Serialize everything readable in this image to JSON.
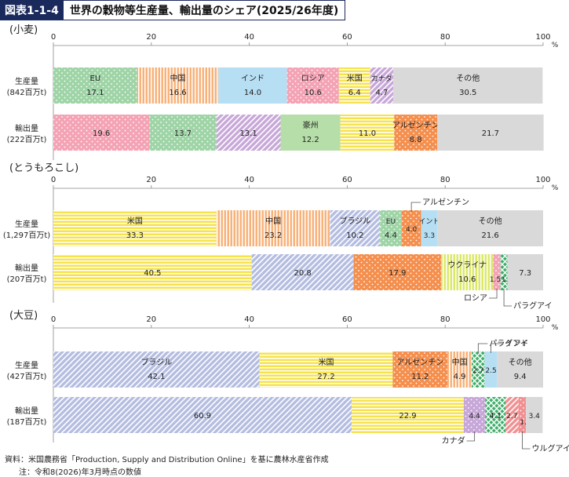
{
  "figure": {
    "label": "図表1-1-4",
    "title": "世界の穀物等生産量、輸出量のシェア(2025/26年度)",
    "source": "資料：米国農務省「Production, Supply and Distribution Online」を基に農林水産省作成",
    "note": "注：令和8(2026)年3月時点の数値"
  },
  "colors": {
    "EU": "#9ed4a6",
    "中国": "#f7b27a",
    "インド": "#b7dff3",
    "ロシア": "#f4a3b5",
    "米国": "#f6e24d",
    "カナダ": "#c7a7d8",
    "その他": "#d9d9d9",
    "豪州": "#b6dea8",
    "アルゼンチン": "#f48f4e",
    "ブラジル": "#b4bde0",
    "ウクライナ": "#dbe86a",
    "パラグアイ": "#3fae6a",
    "ウルグアイ": "#f18f91"
  },
  "chart_data": [
    {
      "type": "bar",
      "stacked": "horizontal",
      "title": "(小麦)",
      "xlim": [
        0,
        100
      ],
      "x_ticks": [
        "0",
        "20",
        "40",
        "60",
        "80",
        "100"
      ],
      "x_unit": "%",
      "bars": [
        {
          "label": "生産量",
          "sublabel": "(842百万t)",
          "segments": [
            {
              "name": "EU",
              "value": 17.1,
              "pattern": "dots",
              "label_pos": "inside"
            },
            {
              "name": "中国",
              "value": 16.6,
              "pattern": "vlines",
              "label_pos": "inside"
            },
            {
              "name": "インド",
              "value": 14.0,
              "pattern": "none",
              "label_pos": "inside"
            },
            {
              "name": "ロシア",
              "value": 10.6,
              "pattern": "dots",
              "label_pos": "inside"
            },
            {
              "name": "米国",
              "value": 6.4,
              "pattern": "hlines",
              "label_pos": "inside"
            },
            {
              "name": "カナダ",
              "value": 4.7,
              "pattern": "diag",
              "label_pos": "inside"
            },
            {
              "name": "その他",
              "value": 30.5,
              "pattern": "none",
              "label_pos": "inside"
            }
          ]
        },
        {
          "label": "輸出量",
          "sublabel": "(222百万t)",
          "segments": [
            {
              "name": "ロシア",
              "value": 19.6,
              "pattern": "dots",
              "label_pos": "value"
            },
            {
              "name": "EU",
              "value": 13.7,
              "pattern": "dots",
              "label_pos": "value"
            },
            {
              "name": "カナダ",
              "value": 13.1,
              "pattern": "diag",
              "label_pos": "value"
            },
            {
              "name": "豪州",
              "value": 12.2,
              "pattern": "none",
              "label_pos": "inside"
            },
            {
              "name": "米国",
              "value": 11.0,
              "pattern": "hlines",
              "label_pos": "value"
            },
            {
              "name": "アルゼンチン",
              "value": 8.8,
              "pattern": "dots",
              "label_pos": "inside"
            },
            {
              "name": "その他",
              "value": 21.7,
              "pattern": "none",
              "label_pos": "value"
            }
          ]
        }
      ]
    },
    {
      "type": "bar",
      "stacked": "horizontal",
      "title": "(とうもろこし)",
      "xlim": [
        0,
        100
      ],
      "x_ticks": [
        "0",
        "20",
        "40",
        "60",
        "80",
        "100"
      ],
      "x_unit": "%",
      "bars": [
        {
          "label": "生産量",
          "sublabel": "(1,297百万t)",
          "segments": [
            {
              "name": "米国",
              "value": 33.3,
              "pattern": "hlines",
              "label_pos": "inside"
            },
            {
              "name": "中国",
              "value": 23.2,
              "pattern": "vlines",
              "label_pos": "inside"
            },
            {
              "name": "ブラジル",
              "value": 10.2,
              "pattern": "diag",
              "label_pos": "inside"
            },
            {
              "name": "EU",
              "value": 4.4,
              "pattern": "dots",
              "label_pos": "inside"
            },
            {
              "name": "アルゼンチン",
              "value": 4.0,
              "pattern": "dots",
              "label_pos": "callout-above"
            },
            {
              "name": "インド",
              "value": 3.3,
              "pattern": "none",
              "label_pos": "inside-wide"
            },
            {
              "name": "その他",
              "value": 21.6,
              "pattern": "none",
              "label_pos": "inside"
            }
          ]
        },
        {
          "label": "輸出量",
          "sublabel": "(207百万t)",
          "segments": [
            {
              "name": "米国",
              "value": 40.5,
              "pattern": "hlines",
              "label_pos": "value"
            },
            {
              "name": "ブラジル",
              "value": 20.8,
              "pattern": "diag",
              "label_pos": "value"
            },
            {
              "name": "アルゼンチン",
              "value": 17.9,
              "pattern": "dots",
              "label_pos": "value"
            },
            {
              "name": "ウクライナ",
              "value": 10.6,
              "pattern": "vlines",
              "label_pos": "inside"
            },
            {
              "name": "ロシア",
              "value": 1.5,
              "pattern": "dots",
              "label_pos": "callout-below"
            },
            {
              "name": "パラグアイ",
              "value": 1.4,
              "pattern": "cross",
              "label_pos": "callout-below"
            },
            {
              "name": "その他",
              "value": 7.3,
              "pattern": "none",
              "label_pos": "value"
            }
          ]
        }
      ]
    },
    {
      "type": "bar",
      "stacked": "horizontal",
      "title": "(大豆)",
      "xlim": [
        0,
        100
      ],
      "x_ticks": [
        "0",
        "20",
        "40",
        "60",
        "80",
        "100"
      ],
      "x_unit": "%",
      "bars": [
        {
          "label": "生産量",
          "sublabel": "(427百万t)",
          "segments": [
            {
              "name": "ブラジル",
              "value": 42.1,
              "pattern": "diag",
              "label_pos": "inside"
            },
            {
              "name": "米国",
              "value": 27.2,
              "pattern": "hlines",
              "label_pos": "inside"
            },
            {
              "name": "アルゼンチン",
              "value": 11.2,
              "pattern": "dots",
              "label_pos": "inside"
            },
            {
              "name": "中国",
              "value": 4.9,
              "pattern": "vlines",
              "label_pos": "inside"
            },
            {
              "name": "パラグアイ",
              "value": 2.7,
              "pattern": "cross",
              "label_pos": "callout-above"
            },
            {
              "name": "インド",
              "value": 2.5,
              "pattern": "none",
              "label_pos": "callout-above"
            },
            {
              "name": "その他",
              "value": 9.4,
              "pattern": "none",
              "label_pos": "inside"
            }
          ]
        },
        {
          "label": "輸出量",
          "sublabel": "(187百万t)",
          "segments": [
            {
              "name": "ブラジル",
              "value": 60.9,
              "pattern": "diag",
              "label_pos": "value"
            },
            {
              "name": "米国",
              "value": 22.9,
              "pattern": "hlines",
              "label_pos": "value"
            },
            {
              "name": "カナダ",
              "value": 4.4,
              "pattern": "dots",
              "label_pos": "callout-below"
            },
            {
              "name": "パラグアイ",
              "value": 4.1,
              "pattern": "cross",
              "label_pos": "value"
            },
            {
              "name": "ウルグアイ",
              "value": 2.7,
              "pattern": "diag",
              "label_pos": "value"
            },
            {
              "name": "ウルグアイ",
              "value": 1.5,
              "pattern": "dots",
              "label_pos": "callout-below"
            },
            {
              "name": "その他",
              "value": 3.4,
              "pattern": "none",
              "label_pos": "value"
            }
          ]
        }
      ]
    }
  ]
}
